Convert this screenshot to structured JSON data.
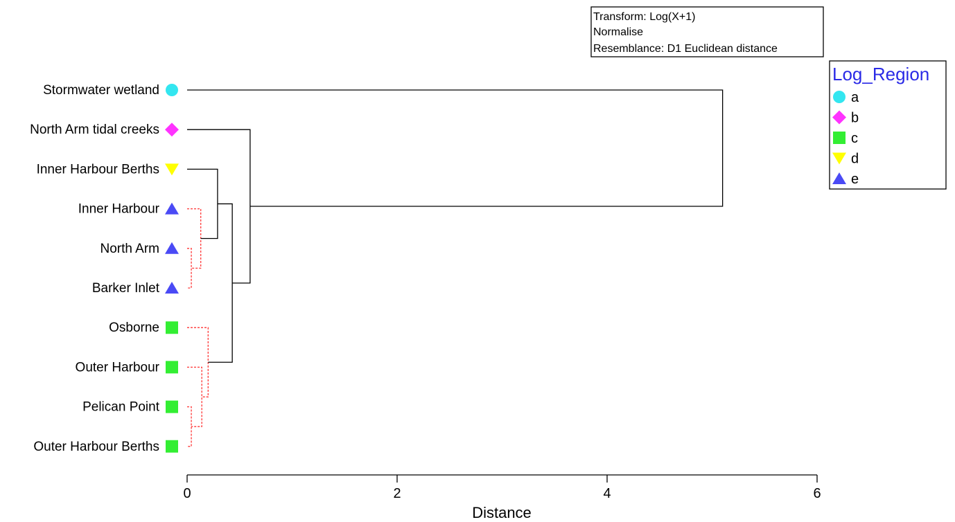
{
  "chart_data": {
    "type": "dendrogram",
    "xlabel": "Distance",
    "xlim": [
      0,
      6
    ],
    "x_ticks": [
      0,
      2,
      4,
      6
    ],
    "leaves": [
      {
        "label": "Stormwater wetland",
        "group": "a"
      },
      {
        "label": "North Arm tidal creeks",
        "group": "b"
      },
      {
        "label": "Inner Harbour Berths",
        "group": "d"
      },
      {
        "label": "Inner Harbour",
        "group": "e"
      },
      {
        "label": "North Arm",
        "group": "e"
      },
      {
        "label": "Barker Inlet",
        "group": "e"
      },
      {
        "label": "Osborne",
        "group": "c"
      },
      {
        "label": "Outer Harbour",
        "group": "c"
      },
      {
        "label": "Pelican Point",
        "group": "c"
      },
      {
        "label": "Outer Harbour Berths",
        "group": "c"
      }
    ],
    "merges": [
      {
        "children": [
          4,
          5
        ],
        "height": 0.04,
        "style": "dashed"
      },
      {
        "children": [
          3,
          "m0"
        ],
        "height": 0.13,
        "style": "dashed"
      },
      {
        "children": [
          8,
          9
        ],
        "height": 0.04,
        "style": "dashed"
      },
      {
        "children": [
          7,
          "m2"
        ],
        "height": 0.14,
        "style": "dashed"
      },
      {
        "children": [
          6,
          "m3"
        ],
        "height": 0.2,
        "style": "dashed"
      },
      {
        "children": [
          2,
          "m1"
        ],
        "height": 0.29,
        "style": "solid"
      },
      {
        "children": [
          "m5",
          "m4"
        ],
        "height": 0.43,
        "style": "solid"
      },
      {
        "children": [
          1,
          "m6"
        ],
        "height": 0.6,
        "style": "solid"
      },
      {
        "children": [
          0,
          "m7"
        ],
        "height": 5.1,
        "style": "solid"
      }
    ],
    "info_box": [
      "Transform: Log(X+1)",
      "Normalise",
      "Resemblance: D1 Euclidean distance"
    ],
    "legend": {
      "title": "Log_Region",
      "placement": "right",
      "entries": [
        {
          "label": "a",
          "marker": "circle",
          "color": "#33e6f0"
        },
        {
          "label": "b",
          "marker": "diamond",
          "color": "#ff33ff"
        },
        {
          "label": "c",
          "marker": "square",
          "color": "#33ee33"
        },
        {
          "label": "d",
          "marker": "triangle-down",
          "color": "#ffff00"
        },
        {
          "label": "e",
          "marker": "triangle-up",
          "color": "#4a4af5"
        }
      ]
    },
    "colors": {
      "solid_line": "#000000",
      "dashed_line": "#ff3333",
      "legend_title": "#2a2ae6"
    }
  }
}
